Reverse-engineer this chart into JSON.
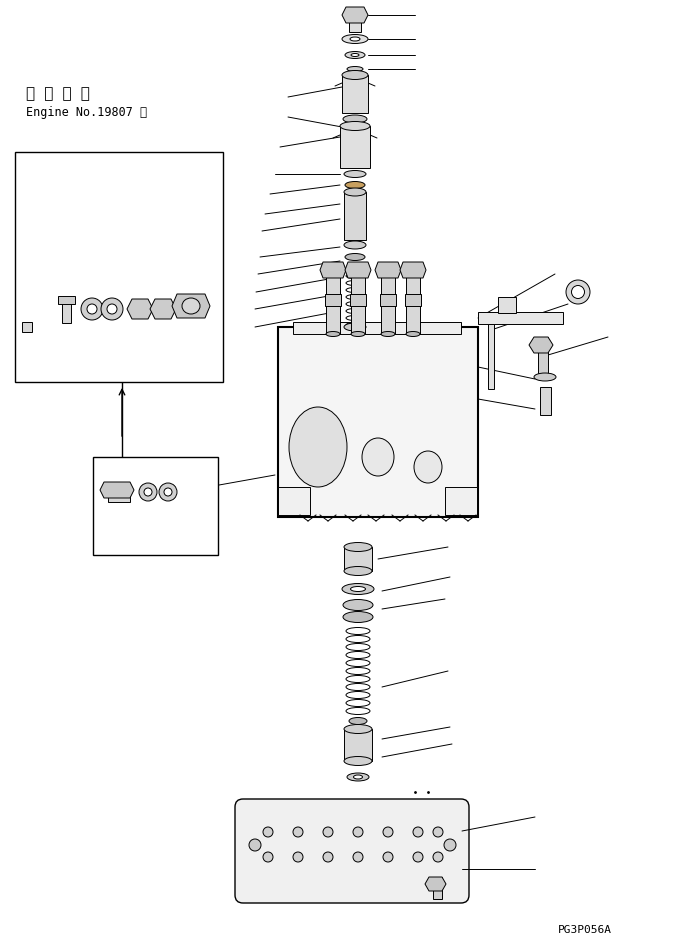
{
  "figure_width": 6.87,
  "figure_height": 9.45,
  "dpi": 100,
  "bg_color": "#ffffff",
  "line_color": "#000000",
  "text_color": "#000000",
  "title_japanese": "適 用 号 機",
  "title_engine": "Engine No.19807 ～",
  "part_code": "PG3P056A"
}
